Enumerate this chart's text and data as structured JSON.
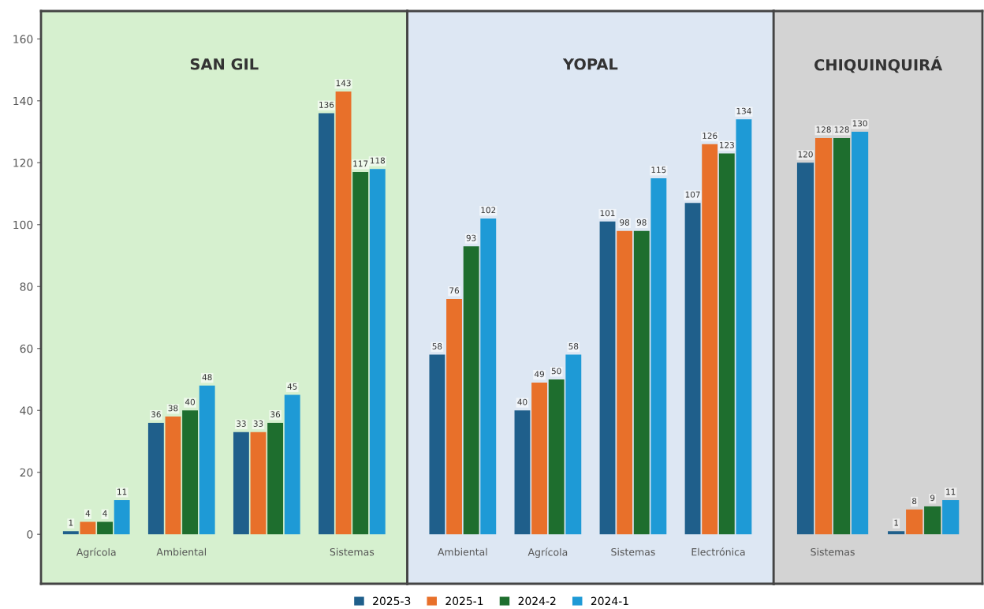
{
  "chart_data": [
    {
      "type": "bar",
      "title": "SAN GIL",
      "categories": [
        "Agrícola",
        "Ambiental",
        null,
        "Sistemas"
      ],
      "ylim": [
        -16,
        169
      ],
      "yticks": [
        0,
        20,
        40,
        60,
        80,
        100,
        120,
        140,
        160
      ],
      "data_labels": true,
      "grid": false,
      "legend": "bottom",
      "series": [
        {
          "name": "2025-3",
          "color": "#1f5f8b",
          "values": [
            1,
            36,
            33,
            136
          ]
        },
        {
          "name": "2025-1",
          "color": "#e8702a",
          "values": [
            4,
            38,
            33,
            143
          ]
        },
        {
          "name": "2024-2",
          "color": "#1e6e2e",
          "values": [
            4,
            40,
            36,
            117
          ]
        },
        {
          "name": "2024-1",
          "color": "#1e9ad6",
          "values": [
            11,
            48,
            45,
            118
          ]
        }
      ]
    },
    {
      "type": "bar",
      "title": "YOPAL",
      "categories": [
        "Ambiental",
        "Agrícola",
        "Sistemas",
        "Electrónica"
      ],
      "ylim": [
        -16,
        169
      ],
      "yticks": [
        0,
        20,
        40,
        60,
        80,
        100,
        120,
        140,
        160
      ],
      "tick_labels": "x",
      "data_labels": true,
      "grid": false,
      "legend": "bottom",
      "series": [
        {
          "name": "2025-3",
          "color": "#1f5f8b",
          "values": [
            58,
            40,
            101,
            107
          ]
        },
        {
          "name": "2025-1",
          "color": "#e8702a",
          "values": [
            76,
            49,
            98,
            126
          ]
        },
        {
          "name": "2024-2",
          "color": "#1e6e2e",
          "values": [
            93,
            50,
            98,
            123
          ]
        },
        {
          "name": "2024-1",
          "color": "#1e9ad6",
          "values": [
            102,
            58,
            115,
            134
          ]
        }
      ]
    },
    {
      "type": "bar",
      "title": "CHIQUINQUIRÁ",
      "categories": [
        "Sistemas",
        null
      ],
      "ylim": [
        -16,
        169
      ],
      "yticks": [
        0,
        20,
        40,
        60,
        80,
        100,
        120,
        140,
        160
      ],
      "tick_labels": "x",
      "data_labels": true,
      "grid": false,
      "legend": "bottom",
      "series": [
        {
          "name": "2025-3",
          "color": "#1f5f8b",
          "values": [
            120,
            1
          ]
        },
        {
          "name": "2025-1",
          "color": "#e8702a",
          "values": [
            128,
            8
          ]
        },
        {
          "name": "2024-2",
          "color": "#1e6e2e",
          "values": [
            128,
            9
          ]
        },
        {
          "name": "2024-1",
          "color": "#1e9ad6",
          "values": [
            130,
            11
          ]
        }
      ]
    }
  ]
}
